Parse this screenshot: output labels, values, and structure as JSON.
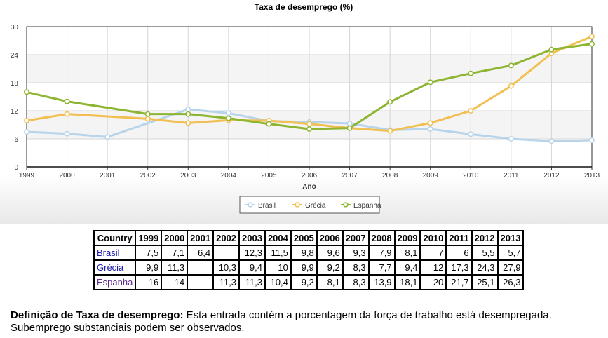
{
  "chart_data": {
    "type": "line",
    "title": "Taxa de desemprego (%)",
    "xlabel": "Ano",
    "ylabel": "",
    "x": [
      "1999",
      "2000",
      "2001",
      "2002",
      "2003",
      "2004",
      "2005",
      "2006",
      "2007",
      "2008",
      "2009",
      "2010",
      "2011",
      "2012",
      "2013"
    ],
    "ylim": [
      0,
      30
    ],
    "yticks": [
      0,
      6,
      12,
      18,
      24,
      30
    ],
    "grid": true,
    "legend_position": "bottom-right",
    "series": [
      {
        "name": "Brasil",
        "color": "#b8d4ea",
        "values": [
          7.5,
          7.1,
          6.4,
          null,
          12.3,
          11.5,
          9.8,
          9.6,
          9.3,
          7.9,
          8.1,
          7,
          6,
          5.5,
          5.7
        ]
      },
      {
        "name": "Grécia",
        "color": "#f1bf52",
        "values": [
          9.9,
          11.3,
          null,
          10.3,
          9.4,
          10,
          9.9,
          9.2,
          8.3,
          7.7,
          9.4,
          12,
          17.3,
          24.3,
          27.9
        ]
      },
      {
        "name": "Espanha",
        "color": "#8db531",
        "values": [
          16,
          14,
          null,
          11.3,
          11.3,
          10.4,
          9.2,
          8.1,
          8.3,
          13.9,
          18.1,
          20,
          21.7,
          25.1,
          26.3
        ]
      }
    ]
  },
  "table": {
    "header_country": "Country",
    "years": [
      "1999",
      "2000",
      "2001",
      "2002",
      "2003",
      "2004",
      "2005",
      "2006",
      "2007",
      "2008",
      "2009",
      "2010",
      "2011",
      "2012",
      "2013"
    ],
    "rows": [
      {
        "country": "Brasil",
        "cells": [
          "7,5",
          "7,1",
          "6,4",
          "",
          "12,3",
          "11,5",
          "9,8",
          "9,6",
          "9,3",
          "7,9",
          "8,1",
          "7",
          "6",
          "5,5",
          "5,7"
        ]
      },
      {
        "country": "Grécia",
        "cells": [
          "9,9",
          "11,3",
          "",
          "10,3",
          "9,4",
          "10",
          "9,9",
          "9,2",
          "8,3",
          "7,7",
          "9,4",
          "12",
          "17,3",
          "24,3",
          "27,9"
        ]
      },
      {
        "country": "Espanha",
        "cells": [
          "16",
          "14",
          "",
          "11,3",
          "11,3",
          "10,4",
          "9,2",
          "8,1",
          "8,3",
          "13,9",
          "18,1",
          "20",
          "21,7",
          "25,1",
          "26,3"
        ]
      }
    ]
  },
  "definition": {
    "term": "Definição de Taxa de desemprego:",
    "text": " Esta entrada contém a porcentagem da força de trabalho está desempregada. Subemprego substanciais podem ser observados."
  }
}
